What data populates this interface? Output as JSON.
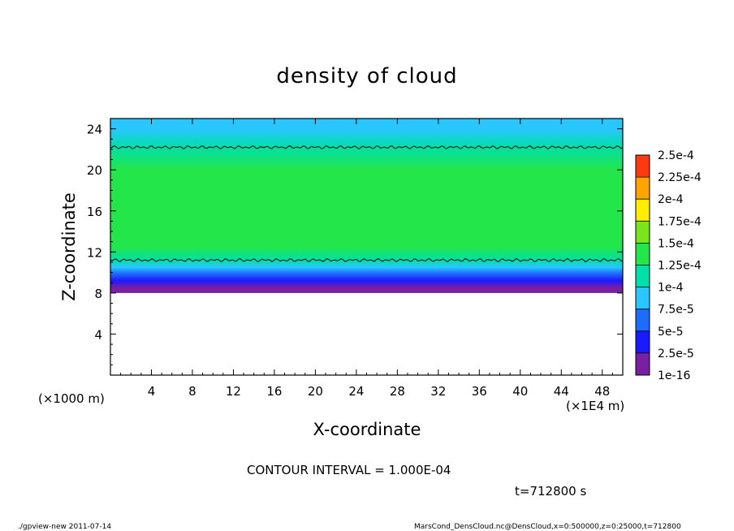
{
  "chart_data": {
    "type": "heatmap",
    "title": "density of cloud",
    "xlabel": "X-coordinate",
    "ylabel": "Z-coordinate",
    "x_unit_note": "(×1E4 m)",
    "y_unit_note": "(×1000 m)",
    "xlim": [
      0,
      50
    ],
    "ylim": [
      0,
      25
    ],
    "x_ticks": [
      "4",
      "8",
      "12",
      "16",
      "20",
      "24",
      "28",
      "32",
      "36",
      "40",
      "44",
      "48"
    ],
    "x_tick_values": [
      4,
      8,
      12,
      16,
      20,
      24,
      28,
      32,
      36,
      40,
      44,
      48
    ],
    "y_ticks": [
      "4",
      "8",
      "12",
      "16",
      "20",
      "24"
    ],
    "y_tick_values": [
      4,
      8,
      12,
      16,
      20,
      24
    ],
    "colorbar": {
      "labels": [
        "1e-16",
        "2.5e-5",
        "5e-5",
        "7.5e-5",
        "1e-4",
        "1.25e-4",
        "1.5e-4",
        "1.75e-4",
        "2e-4",
        "2.25e-4",
        "2.5e-4"
      ],
      "colors": [
        "#7a1fa2",
        "#1a1aff",
        "#1e6cff",
        "#29c6ff",
        "#00e0a8",
        "#23e64a",
        "#7ae51a",
        "#ffee00",
        "#ffa400",
        "#ff3a10",
        "#ff8a8a"
      ]
    },
    "profile": [
      {
        "z": 8.0,
        "value": 0
      },
      {
        "z": 8.5,
        "value": 1.5e-05
      },
      {
        "z": 9.2,
        "value": 3e-05
      },
      {
        "z": 9.9,
        "value": 5e-05
      },
      {
        "z": 10.5,
        "value": 7.5e-05
      },
      {
        "z": 11.2,
        "value": 0.0001
      },
      {
        "z": 12.5,
        "value": 0.000125
      },
      {
        "z": 16.0,
        "value": 0.00014
      },
      {
        "z": 20.0,
        "value": 0.00013
      },
      {
        "z": 22.2,
        "value": 0.0001
      },
      {
        "z": 24.0,
        "value": 8.5e-05
      },
      {
        "z": 25.0,
        "value": 8e-05
      }
    ],
    "contour_levels": [
      0.0001
    ],
    "contour_lines_z": [
      11.2,
      22.2
    ]
  },
  "contour_interval": "CONTOUR INTERVAL = 1.000E-04",
  "time_label": "t=712800 s",
  "footer_left": "./gpview-new   2011-07-14",
  "footer_right": "MarsCond_DensCloud.nc@DensCloud,x=0:500000,z=0:25000,t=712800"
}
